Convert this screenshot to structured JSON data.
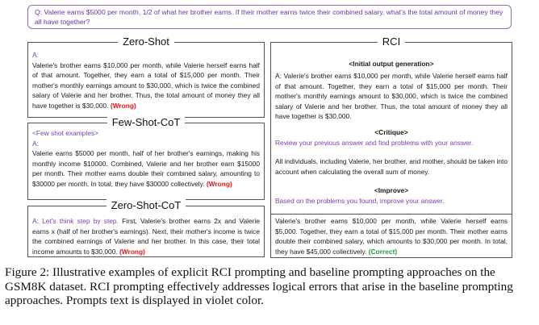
{
  "question": "Q: Valerie earns $5000 per month, 1/2 of what her brother earns. If their mother earns twice their combined salary, what's the total amount of money they all have together?",
  "zero_shot": {
    "title": "Zero-Shot",
    "prompt": "A:",
    "answer": "Valerie's brother earns $10,000 per month, while Valerie herself earns half of that amount. Together, they earn a total of $15,000 per month. Their mother's monthly earnings amount to $30,000, which is twice the combined salary of Valerie and her brother. Thus, the total amount of money they all have together is $30,000.",
    "verdict": "(Wrong)"
  },
  "few_shot_cot": {
    "title": "Few-Shot-CoT",
    "prompt1": "<Few shot examples>",
    "prompt2": "A:",
    "answer": "Valerie earns $5000 per month, half of her brother's earnings, making his monthly income $10000. Combined, Valerie and her brother earn $15000 per month. Their mother earns double their combined salary, amounting to $30000 per month. In total, they have $30000 collectively.",
    "verdict": "(Wrong)"
  },
  "zero_shot_cot": {
    "title": "Zero-Shot-CoT",
    "prompt": "A: Let's think step by step.",
    "answer": " First, Valerie's brother earns 2x and Valerie earns x (half of her brother's earnings). Next, their mother's income is twice the combined earnings of Valerie and her brother. In this case, their total income amounts to $30,000.",
    "verdict": "(Wrong)"
  },
  "rci": {
    "title": "RCI",
    "initial_head": "<Initial output generation>",
    "initial_text": "A: Valerie's brother earns $10,000 per month, while Valerie herself earns half of that amount. Together, they earn a total of $15,000 per month. Their mother's monthly earnings amount to $30,000, which is twice the combined salary of Valerie and her brother. Thus, the total amount of money they all have together is $30,000.",
    "critique_head": "<Critique>",
    "critique_prompt": "Review your previous answer and find problems with your answer.",
    "critique_text": "All individuals, including Valerie, her brother, and mother, should be taken into account when calculating the overall sum of money.",
    "improve_head": "<Improve>",
    "improve_prompt": "Based on the problems you found, improve your answer.",
    "improve_text": "Valerie's brother earns $10,000 per month, while Valerie herself earns $5,000. Together, they earn a total of $15,000 per month. Their mother earns double their combined salary, which amounts to $30,000 per month. In total, they have $45,000 collectively.",
    "verdict": "(Correct)"
  },
  "caption": "Figure 2: Illustrative examples of explicit RCI prompting and baseline prompting approaches on the GSM8K dataset. RCI prompting effectively addresses logical errors that arise in the baseline prompting approaches. Prompts text is displayed in violet color."
}
